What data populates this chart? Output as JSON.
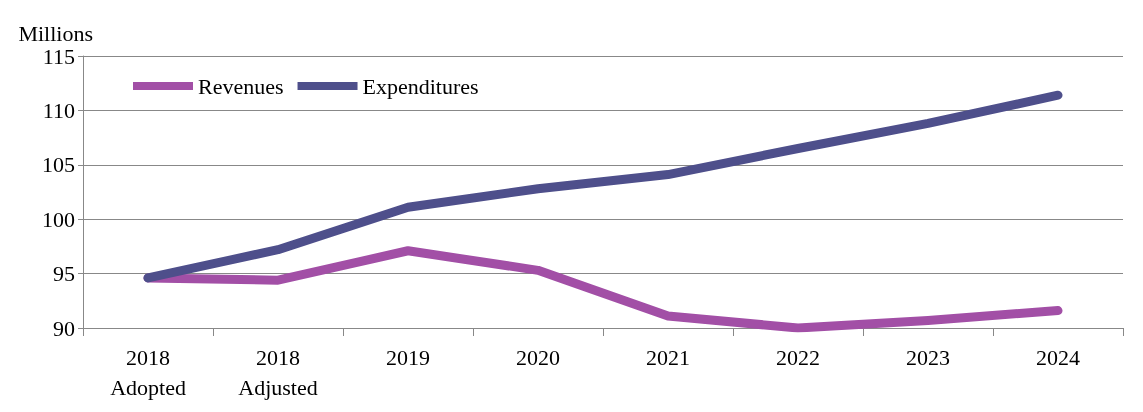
{
  "chart_data": {
    "type": "line",
    "ylabel": "Millions",
    "categories": [
      "2018\nAdopted",
      "2018\nAdjusted",
      "2019",
      "2020",
      "2021",
      "2022",
      "2023",
      "2024"
    ],
    "series": [
      {
        "name": "Revenues",
        "color": "#a24fa6",
        "values": [
          94.6,
          94.4,
          97.1,
          95.3,
          91.1,
          90.0,
          90.7,
          91.6
        ]
      },
      {
        "name": "Expenditures",
        "color": "#4e4f8b",
        "values": [
          94.6,
          97.2,
          101.1,
          102.8,
          104.1,
          106.5,
          108.8,
          111.4
        ]
      }
    ],
    "ylim": [
      90,
      115
    ],
    "yticks": [
      90,
      95,
      100,
      105,
      110,
      115
    ],
    "grid": "y",
    "legend": "top left",
    "marker": "none",
    "line_style": "solid"
  }
}
